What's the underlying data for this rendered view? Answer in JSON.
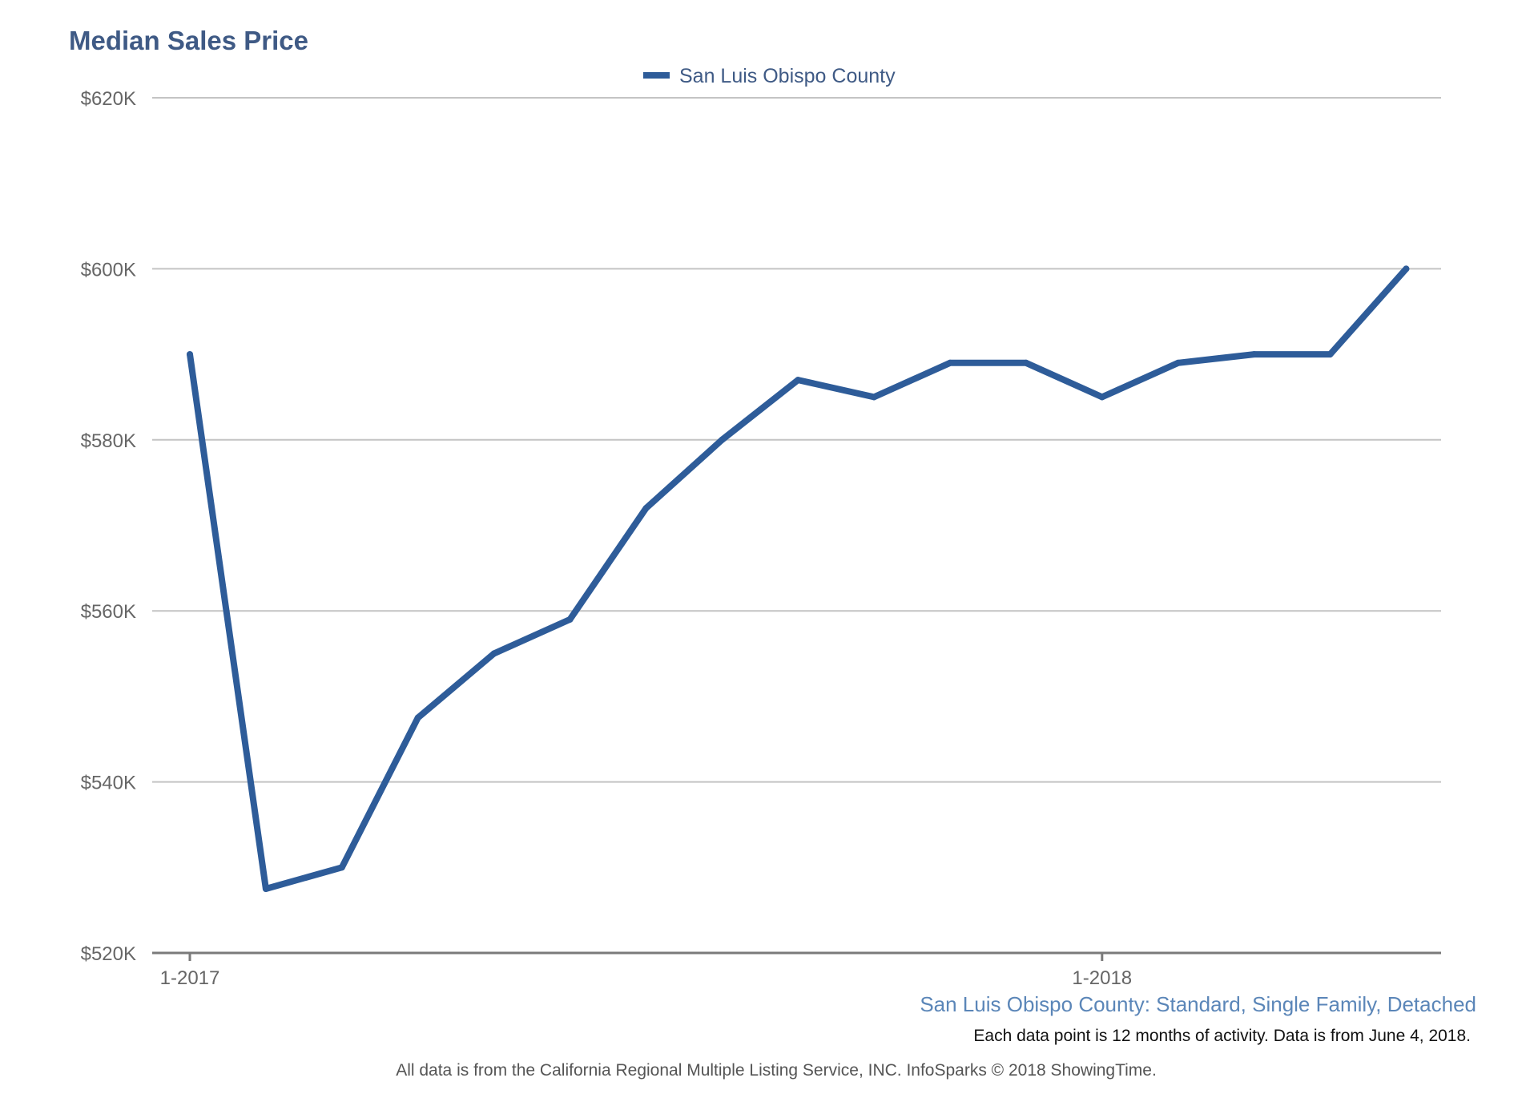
{
  "chart_data": {
    "type": "line",
    "title": "Median Sales Price",
    "x": [
      "1-2017",
      "2-2017",
      "3-2017",
      "4-2017",
      "5-2017",
      "6-2017",
      "7-2017",
      "8-2017",
      "9-2017",
      "10-2017",
      "11-2017",
      "12-2017",
      "1-2018",
      "2-2018",
      "3-2018",
      "4-2018",
      "5-2018"
    ],
    "x_tick_labels": [
      {
        "index": 0,
        "label": "1-2017"
      },
      {
        "index": 12,
        "label": "1-2018"
      }
    ],
    "series": [
      {
        "name": "San Luis Obispo County",
        "color": "#2e5c99",
        "values": [
          590000,
          527500,
          530000,
          547500,
          555000,
          559000,
          572000,
          580000,
          587000,
          585000,
          589000,
          589000,
          585000,
          589000,
          590000,
          590000,
          600000
        ]
      }
    ],
    "ylim": [
      520000,
      620000
    ],
    "y_ticks": [
      {
        "value": 620000,
        "label": "$620K"
      },
      {
        "value": 600000,
        "label": "$600K"
      },
      {
        "value": 580000,
        "label": "$580K"
      },
      {
        "value": 560000,
        "label": "$560K"
      },
      {
        "value": 540000,
        "label": "$540K"
      },
      {
        "value": 520000,
        "label": "$520K"
      }
    ],
    "xlabel": "",
    "ylabel": "",
    "grid": true,
    "legend_position": "top-center"
  },
  "subtitle": "San Luis Obispo County: Standard, Single Family, Detached",
  "note": "Each data point is 12 months of activity. Data is from June 4, 2018.",
  "footer": "All data is from the California Regional Multiple Listing Service, INC. InfoSparks © 2018 ShowingTime.",
  "colors": {
    "series": "#2e5c99",
    "title": "#3f5a85",
    "subtitle": "#5b86b8"
  }
}
